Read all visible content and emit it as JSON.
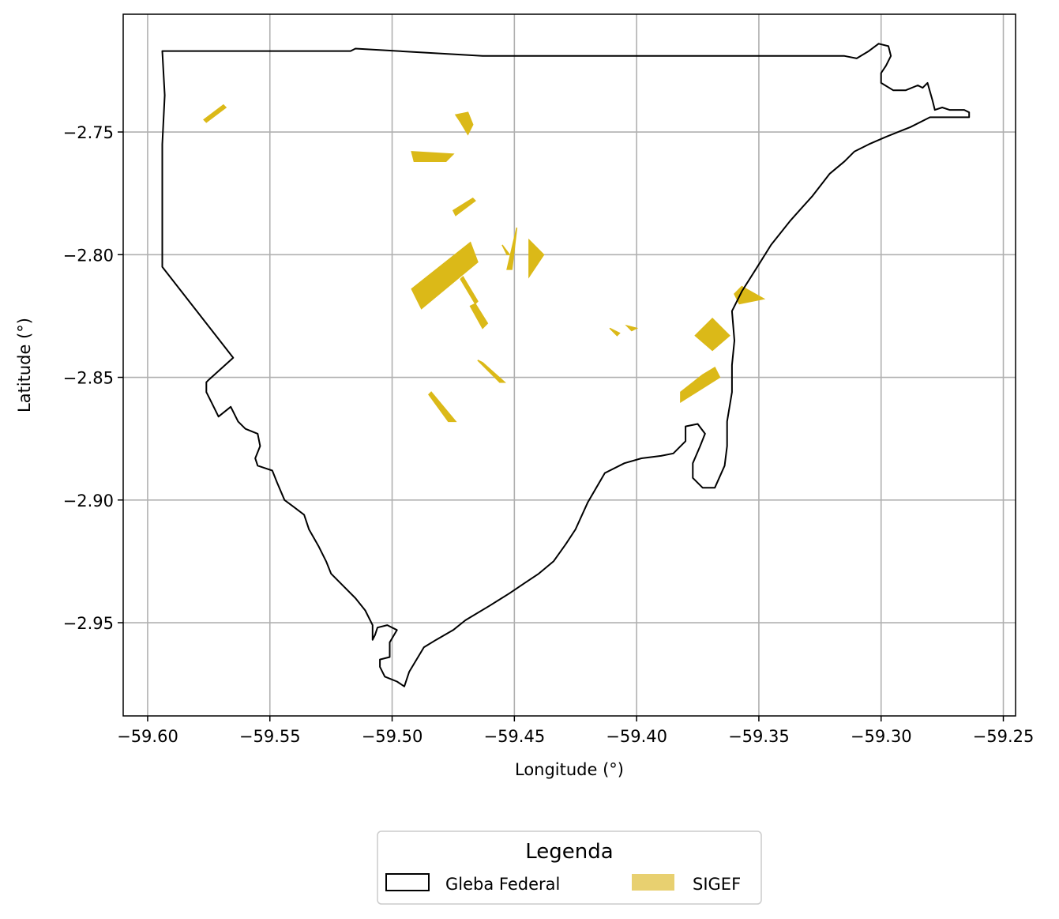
{
  "chart_data": {
    "type": "map",
    "xlabel": "Longitude (°)",
    "ylabel": "Latitude (°)",
    "xlim": [
      -59.61,
      -59.245
    ],
    "ylim": [
      -2.988,
      -2.702
    ],
    "grid": true,
    "x_ticks": [
      {
        "value": -59.6,
        "label": "−59.60"
      },
      {
        "value": -59.55,
        "label": "−59.55"
      },
      {
        "value": -59.5,
        "label": "−59.50"
      },
      {
        "value": -59.45,
        "label": "−59.45"
      },
      {
        "value": -59.4,
        "label": "−59.40"
      },
      {
        "value": -59.35,
        "label": "−59.35"
      },
      {
        "value": -59.3,
        "label": "−59.30"
      },
      {
        "value": -59.25,
        "label": "−59.25"
      }
    ],
    "y_ticks": [
      {
        "value": -2.75,
        "label": "−2.75"
      },
      {
        "value": -2.8,
        "label": "−2.80"
      },
      {
        "value": -2.85,
        "label": "−2.85"
      },
      {
        "value": -2.9,
        "label": "−2.90"
      },
      {
        "value": -2.95,
        "label": "−2.95"
      }
    ],
    "legend": {
      "title": "Legenda",
      "placement": "bottom-center",
      "entries": [
        {
          "label": "Gleba Federal",
          "style": "outline",
          "color": "#000000"
        },
        {
          "label": "SIGEF",
          "style": "fill",
          "color": "#e8d070"
        }
      ]
    },
    "series": [
      {
        "name": "Gleba Federal",
        "kind": "outline",
        "color": "#000000",
        "coordinates": [
          [
            -59.594,
            -2.717
          ],
          [
            -59.517,
            -2.717
          ],
          [
            -59.515,
            -2.716
          ],
          [
            -59.463,
            -2.719
          ],
          [
            -59.42,
            -2.719
          ],
          [
            -59.36,
            -2.719
          ],
          [
            -59.315,
            -2.719
          ],
          [
            -59.31,
            -2.72
          ],
          [
            -59.305,
            -2.717
          ],
          [
            -59.301,
            -2.714
          ],
          [
            -59.297,
            -2.715
          ],
          [
            -59.296,
            -2.719
          ],
          [
            -59.298,
            -2.723
          ],
          [
            -59.3,
            -2.726
          ],
          [
            -59.3,
            -2.73
          ],
          [
            -59.295,
            -2.733
          ],
          [
            -59.29,
            -2.733
          ],
          [
            -59.285,
            -2.731
          ],
          [
            -59.283,
            -2.732
          ],
          [
            -59.281,
            -2.73
          ],
          [
            -59.279,
            -2.737
          ],
          [
            -59.278,
            -2.741
          ],
          [
            -59.275,
            -2.74
          ],
          [
            -59.272,
            -2.741
          ],
          [
            -59.266,
            -2.741
          ],
          [
            -59.264,
            -2.742
          ],
          [
            -59.264,
            -2.744
          ],
          [
            -59.268,
            -2.744
          ],
          [
            -59.272,
            -2.744
          ],
          [
            -59.28,
            -2.744
          ],
          [
            -59.288,
            -2.748
          ],
          [
            -59.298,
            -2.752
          ],
          [
            -59.305,
            -2.755
          ],
          [
            -59.311,
            -2.758
          ],
          [
            -59.315,
            -2.762
          ],
          [
            -59.321,
            -2.767
          ],
          [
            -59.328,
            -2.776
          ],
          [
            -59.337,
            -2.786
          ],
          [
            -59.345,
            -2.796
          ],
          [
            -59.35,
            -2.804
          ],
          [
            -59.357,
            -2.815
          ],
          [
            -59.361,
            -2.823
          ],
          [
            -59.36,
            -2.835
          ],
          [
            -59.361,
            -2.845
          ],
          [
            -59.361,
            -2.856
          ],
          [
            -59.363,
            -2.868
          ],
          [
            -59.363,
            -2.878
          ],
          [
            -59.364,
            -2.886
          ],
          [
            -59.368,
            -2.895
          ],
          [
            -59.373,
            -2.895
          ],
          [
            -59.377,
            -2.891
          ],
          [
            -59.377,
            -2.885
          ],
          [
            -59.374,
            -2.878
          ],
          [
            -59.372,
            -2.873
          ],
          [
            -59.375,
            -2.869
          ],
          [
            -59.38,
            -2.87
          ],
          [
            -59.38,
            -2.876
          ],
          [
            -59.385,
            -2.881
          ],
          [
            -59.39,
            -2.882
          ],
          [
            -59.398,
            -2.883
          ],
          [
            -59.405,
            -2.885
          ],
          [
            -59.413,
            -2.889
          ],
          [
            -59.42,
            -2.901
          ],
          [
            -59.425,
            -2.912
          ],
          [
            -59.429,
            -2.918
          ],
          [
            -59.434,
            -2.925
          ],
          [
            -59.44,
            -2.93
          ],
          [
            -59.446,
            -2.934
          ],
          [
            -59.452,
            -2.938
          ],
          [
            -59.46,
            -2.943
          ],
          [
            -59.47,
            -2.949
          ],
          [
            -59.475,
            -2.953
          ],
          [
            -59.482,
            -2.957
          ],
          [
            -59.487,
            -2.96
          ],
          [
            -59.49,
            -2.965
          ],
          [
            -59.493,
            -2.97
          ],
          [
            -59.495,
            -2.976
          ],
          [
            -59.498,
            -2.974
          ],
          [
            -59.503,
            -2.972
          ],
          [
            -59.505,
            -2.968
          ],
          [
            -59.505,
            -2.965
          ],
          [
            -59.501,
            -2.964
          ],
          [
            -59.501,
            -2.958
          ],
          [
            -59.498,
            -2.953
          ],
          [
            -59.502,
            -2.951
          ],
          [
            -59.506,
            -2.952
          ],
          [
            -59.507,
            -2.955
          ],
          [
            -59.508,
            -2.957
          ],
          [
            -59.508,
            -2.951
          ],
          [
            -59.511,
            -2.945
          ],
          [
            -59.515,
            -2.94
          ],
          [
            -59.52,
            -2.935
          ],
          [
            -59.525,
            -2.93
          ],
          [
            -59.527,
            -2.925
          ],
          [
            -59.53,
            -2.919
          ],
          [
            -59.534,
            -2.912
          ],
          [
            -59.536,
            -2.906
          ],
          [
            -59.54,
            -2.903
          ],
          [
            -59.544,
            -2.9
          ],
          [
            -59.547,
            -2.893
          ],
          [
            -59.549,
            -2.888
          ],
          [
            -59.552,
            -2.887
          ],
          [
            -59.555,
            -2.886
          ],
          [
            -59.556,
            -2.883
          ],
          [
            -59.554,
            -2.878
          ],
          [
            -59.555,
            -2.873
          ],
          [
            -59.56,
            -2.871
          ],
          [
            -59.563,
            -2.868
          ],
          [
            -59.566,
            -2.862
          ],
          [
            -59.571,
            -2.866
          ],
          [
            -59.574,
            -2.86
          ],
          [
            -59.576,
            -2.856
          ],
          [
            -59.576,
            -2.852
          ],
          [
            -59.575,
            -2.851
          ],
          [
            -59.565,
            -2.842
          ],
          [
            -59.594,
            -2.805
          ],
          [
            -59.594,
            -2.755
          ],
          [
            -59.593,
            -2.735
          ],
          [
            -59.594,
            -2.717
          ]
        ]
      },
      {
        "name": "SIGEF",
        "kind": "fill",
        "color": "#dbb918",
        "polygons": [
          [
            [
              -59.577,
              -2.745
            ],
            [
              -59.569,
              -2.739
            ],
            [
              -59.568,
              -2.74
            ],
            [
              -59.576,
              -2.746
            ]
          ],
          [
            [
              -59.474,
              -2.743
            ],
            [
              -59.469,
              -2.742
            ],
            [
              -59.467,
              -2.747
            ],
            [
              -59.469,
              -2.751
            ],
            [
              -59.472,
              -2.746
            ]
          ],
          [
            [
              -59.492,
              -2.758
            ],
            [
              -59.475,
              -2.759
            ],
            [
              -59.478,
              -2.762
            ],
            [
              -59.491,
              -2.762
            ]
          ],
          [
            [
              -59.475,
              -2.782
            ],
            [
              -59.467,
              -2.777
            ],
            [
              -59.466,
              -2.778
            ],
            [
              -59.474,
              -2.784
            ]
          ],
          [
            [
              -59.492,
              -2.814
            ],
            [
              -59.468,
              -2.795
            ],
            [
              -59.465,
              -2.803
            ],
            [
              -59.488,
              -2.822
            ]
          ],
          [
            [
              -59.453,
              -2.806
            ],
            [
              -59.449,
              -2.789
            ],
            [
              -59.451,
              -2.806
            ]
          ],
          [
            [
              -59.455,
              -2.796
            ],
            [
              -59.452,
              -2.8
            ],
            [
              -59.453,
              -2.8
            ]
          ],
          [
            [
              -59.444,
              -2.794
            ],
            [
              -59.438,
              -2.8
            ],
            [
              -59.444,
              -2.809
            ]
          ],
          [
            [
              -59.472,
              -2.81
            ],
            [
              -59.466,
              -2.82
            ],
            [
              -59.465,
              -2.819
            ],
            [
              -59.471,
              -2.809
            ]
          ],
          [
            [
              -59.468,
              -2.821
            ],
            [
              -59.463,
              -2.83
            ],
            [
              -59.461,
              -2.828
            ],
            [
              -59.466,
              -2.82
            ]
          ],
          [
            [
              -59.465,
              -2.843
            ],
            [
              -59.456,
              -2.852
            ],
            [
              -59.454,
              -2.852
            ],
            [
              -59.463,
              -2.844
            ]
          ],
          [
            [
              -59.484,
              -2.856
            ],
            [
              -59.474,
              -2.868
            ],
            [
              -59.477,
              -2.868
            ],
            [
              -59.485,
              -2.857
            ]
          ],
          [
            [
              -59.411,
              -2.83
            ],
            [
              -59.407,
              -2.832
            ],
            [
              -59.408,
              -2.833
            ]
          ],
          [
            [
              -59.404,
              -2.829
            ],
            [
              -59.402,
              -2.831
            ],
            [
              -59.4,
              -2.83
            ]
          ],
          [
            [
              -59.376,
              -2.833
            ],
            [
              -59.369,
              -2.826
            ],
            [
              -59.362,
              -2.833
            ],
            [
              -59.369,
              -2.839
            ]
          ],
          [
            [
              -59.373,
              -2.849
            ],
            [
              -59.368,
              -2.846
            ],
            [
              -59.366,
              -2.85
            ],
            [
              -59.382,
              -2.86
            ],
            [
              -59.382,
              -2.856
            ]
          ],
          [
            [
              -59.36,
              -2.816
            ],
            [
              -59.357,
              -2.813
            ],
            [
              -59.348,
              -2.818
            ],
            [
              -59.358,
              -2.82
            ]
          ]
        ]
      }
    ]
  }
}
